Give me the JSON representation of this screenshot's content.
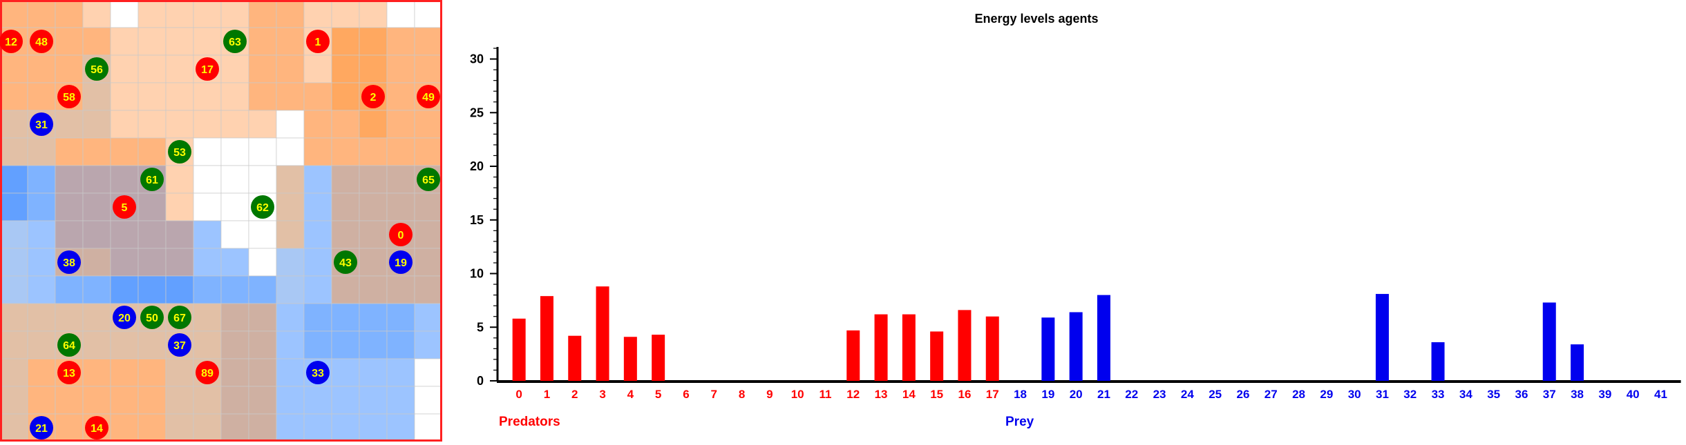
{
  "grid": {
    "cols": 16,
    "rows": 16,
    "palette": {
      "W": "#ffffff",
      "P": "#ffd2b0",
      "O": "#ffb57e",
      "D": "#ffa860",
      "T": "#e2c0a6",
      "M": "#cfb0a2",
      "G": "#baa6ae",
      "S": "#a9c8f4",
      "L": "#9cc4ff",
      "B": "#7fb3ff",
      "K": "#62a0ff"
    },
    "border_color": "#ff2020",
    "cells": [
      "OOOPWPPPPOOPPPWW",
      "OOOOPPPPPOOPDDOO",
      "OOOTPPPPPOOPDDOO",
      "OOOTPPPPPOOODDOO",
      "TTTTPPPPPPWOODOO",
      "TTOOOOPWWWWOOOOO",
      "KBGGGGPWWWTLMMMM",
      "KBGGGGPWWWTLMMMM",
      "SLGGGGGLWWTLMMMM",
      "SLMMGGGLLWSLMMMM",
      "SLBBKKKBBBSLMMMM",
      "TTTTTTTTMMLBBBBL",
      "TTTTTTTTMMLBBBBL",
      "TOOOOOTTMMLLLLLW",
      "TOOOOOTTMMLLLLLW",
      "TOOOOOTTMMLLLLLW"
    ],
    "agents": [
      {
        "label": "12",
        "kind": "predator",
        "col": 0.4,
        "row": 1.5
      },
      {
        "label": "48",
        "kind": "predator",
        "col": 1.5,
        "row": 1.5
      },
      {
        "label": "63",
        "kind": "prey",
        "col": 8.5,
        "row": 1.5
      },
      {
        "label": "1",
        "kind": "predator",
        "col": 11.5,
        "row": 1.5
      },
      {
        "label": "56",
        "kind": "prey",
        "col": 3.5,
        "row": 2.5
      },
      {
        "label": "17",
        "kind": "predator",
        "col": 7.5,
        "row": 2.5
      },
      {
        "label": "58",
        "kind": "predator",
        "col": 2.5,
        "row": 3.5
      },
      {
        "label": "2",
        "kind": "predator",
        "col": 13.5,
        "row": 3.5
      },
      {
        "label": "49",
        "kind": "predator",
        "col": 15.5,
        "row": 3.5
      },
      {
        "label": "31",
        "kind": "blue",
        "col": 1.5,
        "row": 4.5
      },
      {
        "label": "53",
        "kind": "prey",
        "col": 6.5,
        "row": 5.5
      },
      {
        "label": "61",
        "kind": "prey",
        "col": 5.5,
        "row": 6.5
      },
      {
        "label": "65",
        "kind": "prey",
        "col": 15.5,
        "row": 6.5
      },
      {
        "label": "5",
        "kind": "predator",
        "col": 4.5,
        "row": 7.5
      },
      {
        "label": "62",
        "kind": "prey",
        "col": 9.5,
        "row": 7.5
      },
      {
        "label": "0",
        "kind": "predator",
        "col": 14.5,
        "row": 8.5
      },
      {
        "label": "38",
        "kind": "blue",
        "col": 2.5,
        "row": 9.5
      },
      {
        "label": "43",
        "kind": "prey",
        "col": 12.5,
        "row": 9.5
      },
      {
        "label": "19",
        "kind": "blue",
        "col": 14.5,
        "row": 9.5
      },
      {
        "label": "20",
        "kind": "blue",
        "col": 4.5,
        "row": 11.5
      },
      {
        "label": "50",
        "kind": "prey",
        "col": 5.5,
        "row": 11.5
      },
      {
        "label": "67",
        "kind": "prey",
        "col": 6.5,
        "row": 11.5
      },
      {
        "label": "64",
        "kind": "prey",
        "col": 2.5,
        "row": 12.5
      },
      {
        "label": "37",
        "kind": "blue",
        "col": 6.5,
        "row": 12.5
      },
      {
        "label": "13",
        "kind": "predator",
        "col": 2.5,
        "row": 13.5
      },
      {
        "label": "89",
        "kind": "predator",
        "col": 7.5,
        "row": 13.5
      },
      {
        "label": "33",
        "kind": "blue",
        "col": 11.5,
        "row": 13.5
      },
      {
        "label": "21",
        "kind": "blue",
        "col": 1.5,
        "row": 15.5
      },
      {
        "label": "14",
        "kind": "predator",
        "col": 3.5,
        "row": 15.5
      }
    ],
    "agent_colors": {
      "predator": "#ff0000",
      "prey": "#007700",
      "blue": "#0000ee"
    },
    "agent_text_color": "#ffff00"
  },
  "chart_data": {
    "type": "bar",
    "title": "Energy levels agents",
    "xlabel": "",
    "ylabel": "",
    "ylim": [
      0,
      31
    ],
    "yticks": [
      0,
      5,
      10,
      15,
      20,
      25,
      30
    ],
    "grid": false,
    "categories": [
      "0",
      "1",
      "2",
      "3",
      "4",
      "5",
      "6",
      "7",
      "8",
      "9",
      "10",
      "11",
      "12",
      "13",
      "14",
      "15",
      "16",
      "17",
      "18",
      "19",
      "20",
      "21",
      "22",
      "23",
      "24",
      "25",
      "26",
      "27",
      "28",
      "29",
      "30",
      "31",
      "32",
      "33",
      "34",
      "35",
      "36",
      "37",
      "38",
      "39",
      "40",
      "41"
    ],
    "predator_count": 18,
    "groups": [
      {
        "name": "Predators",
        "color": "#ff0000"
      },
      {
        "name": "Prey",
        "color": "#0000ee"
      }
    ],
    "values": [
      5.8,
      7.9,
      4.2,
      8.8,
      4.1,
      4.3,
      0,
      0,
      0,
      0,
      0,
      0,
      4.7,
      6.2,
      6.2,
      4.6,
      6.6,
      6.0,
      0,
      5.9,
      6.4,
      8.0,
      0,
      0,
      0,
      0,
      0,
      0,
      0,
      0,
      0,
      8.1,
      0,
      3.6,
      0,
      0,
      0,
      7.3,
      3.4,
      0,
      0,
      0
    ]
  }
}
